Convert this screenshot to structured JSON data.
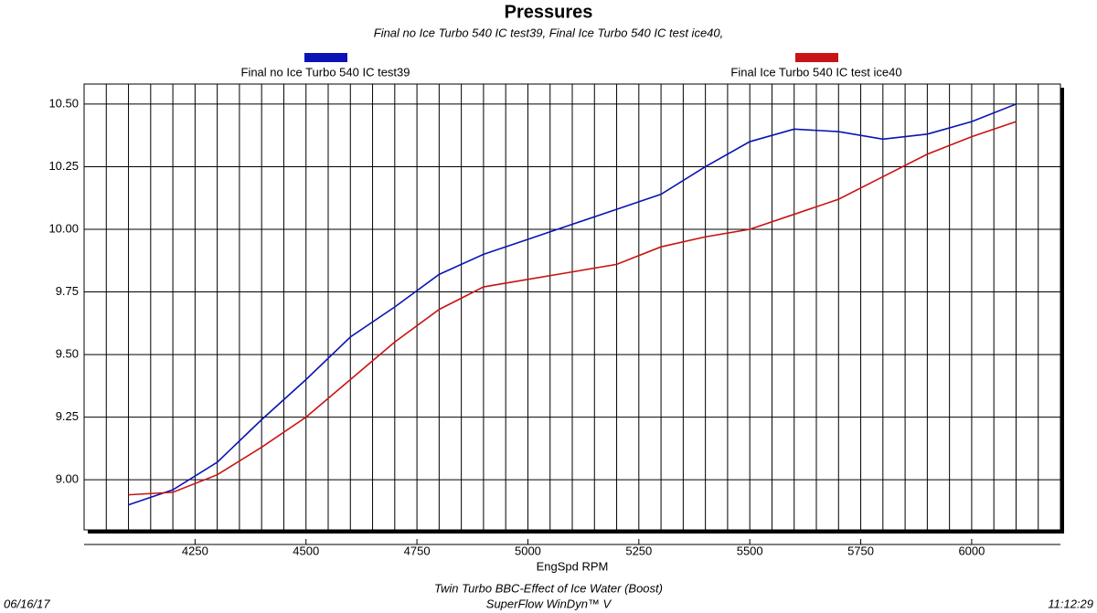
{
  "chart_data": {
    "type": "line",
    "title": "Pressures",
    "subtitle": "Final no Ice Turbo 540 IC test39, Final Ice Turbo 540 IC test ice40,",
    "x_label": "EngSpd RPM",
    "footer": [
      "Twin Turbo BBC-Effect of Ice Water (Boost)",
      "SuperFlow WinDyn™ V"
    ],
    "date": "06/16/17",
    "time": "11:12:29",
    "x": [
      4100,
      4200,
      4300,
      4400,
      4500,
      4600,
      4700,
      4800,
      4900,
      5000,
      5100,
      5200,
      5300,
      5400,
      5500,
      5600,
      5700,
      5800,
      5900,
      6000,
      6100
    ],
    "series": [
      {
        "name": "Final no Ice Turbo 540 IC test39",
        "color": "#0a14b4",
        "values": [
          8.9,
          8.96,
          9.07,
          9.24,
          9.4,
          9.57,
          9.69,
          9.82,
          9.9,
          9.96,
          10.02,
          10.08,
          10.14,
          10.25,
          10.35,
          10.4,
          10.39,
          10.36,
          10.38,
          10.43,
          10.5
        ]
      },
      {
        "name": "Final Ice Turbo 540 IC test ice40",
        "color": "#c81414",
        "values": [
          8.94,
          8.95,
          9.02,
          9.13,
          9.25,
          9.4,
          9.55,
          9.68,
          9.77,
          9.8,
          9.83,
          9.86,
          9.93,
          9.97,
          10.0,
          10.06,
          10.12,
          10.21,
          10.3,
          10.37,
          10.43
        ]
      }
    ],
    "xlim": [
      4000,
      6200
    ],
    "ylim": [
      8.8,
      10.58
    ],
    "xticks": [
      4250,
      4500,
      4750,
      5000,
      5250,
      5500,
      5750,
      6000
    ],
    "xgrid": [
      4050,
      4100,
      4150,
      4200,
      4250,
      4300,
      4350,
      4400,
      4450,
      4500,
      4550,
      4600,
      4650,
      4700,
      4750,
      4800,
      4850,
      4900,
      4950,
      5000,
      5050,
      5100,
      5150,
      5200,
      5250,
      5300,
      5350,
      5400,
      5450,
      5500,
      5550,
      5600,
      5650,
      5700,
      5750,
      5800,
      5850,
      5900,
      5950,
      6000,
      6050,
      6100,
      6150
    ],
    "yticks": [
      {
        "value": 9.0,
        "label": "9.00"
      },
      9.25,
      {
        "value": 9.5,
        "label": "9.50"
      },
      9.75,
      {
        "value": 10.0,
        "label": "10.00"
      },
      10.25,
      {
        "value": 10.5,
        "label": "10.50"
      }
    ],
    "grid": true
  }
}
